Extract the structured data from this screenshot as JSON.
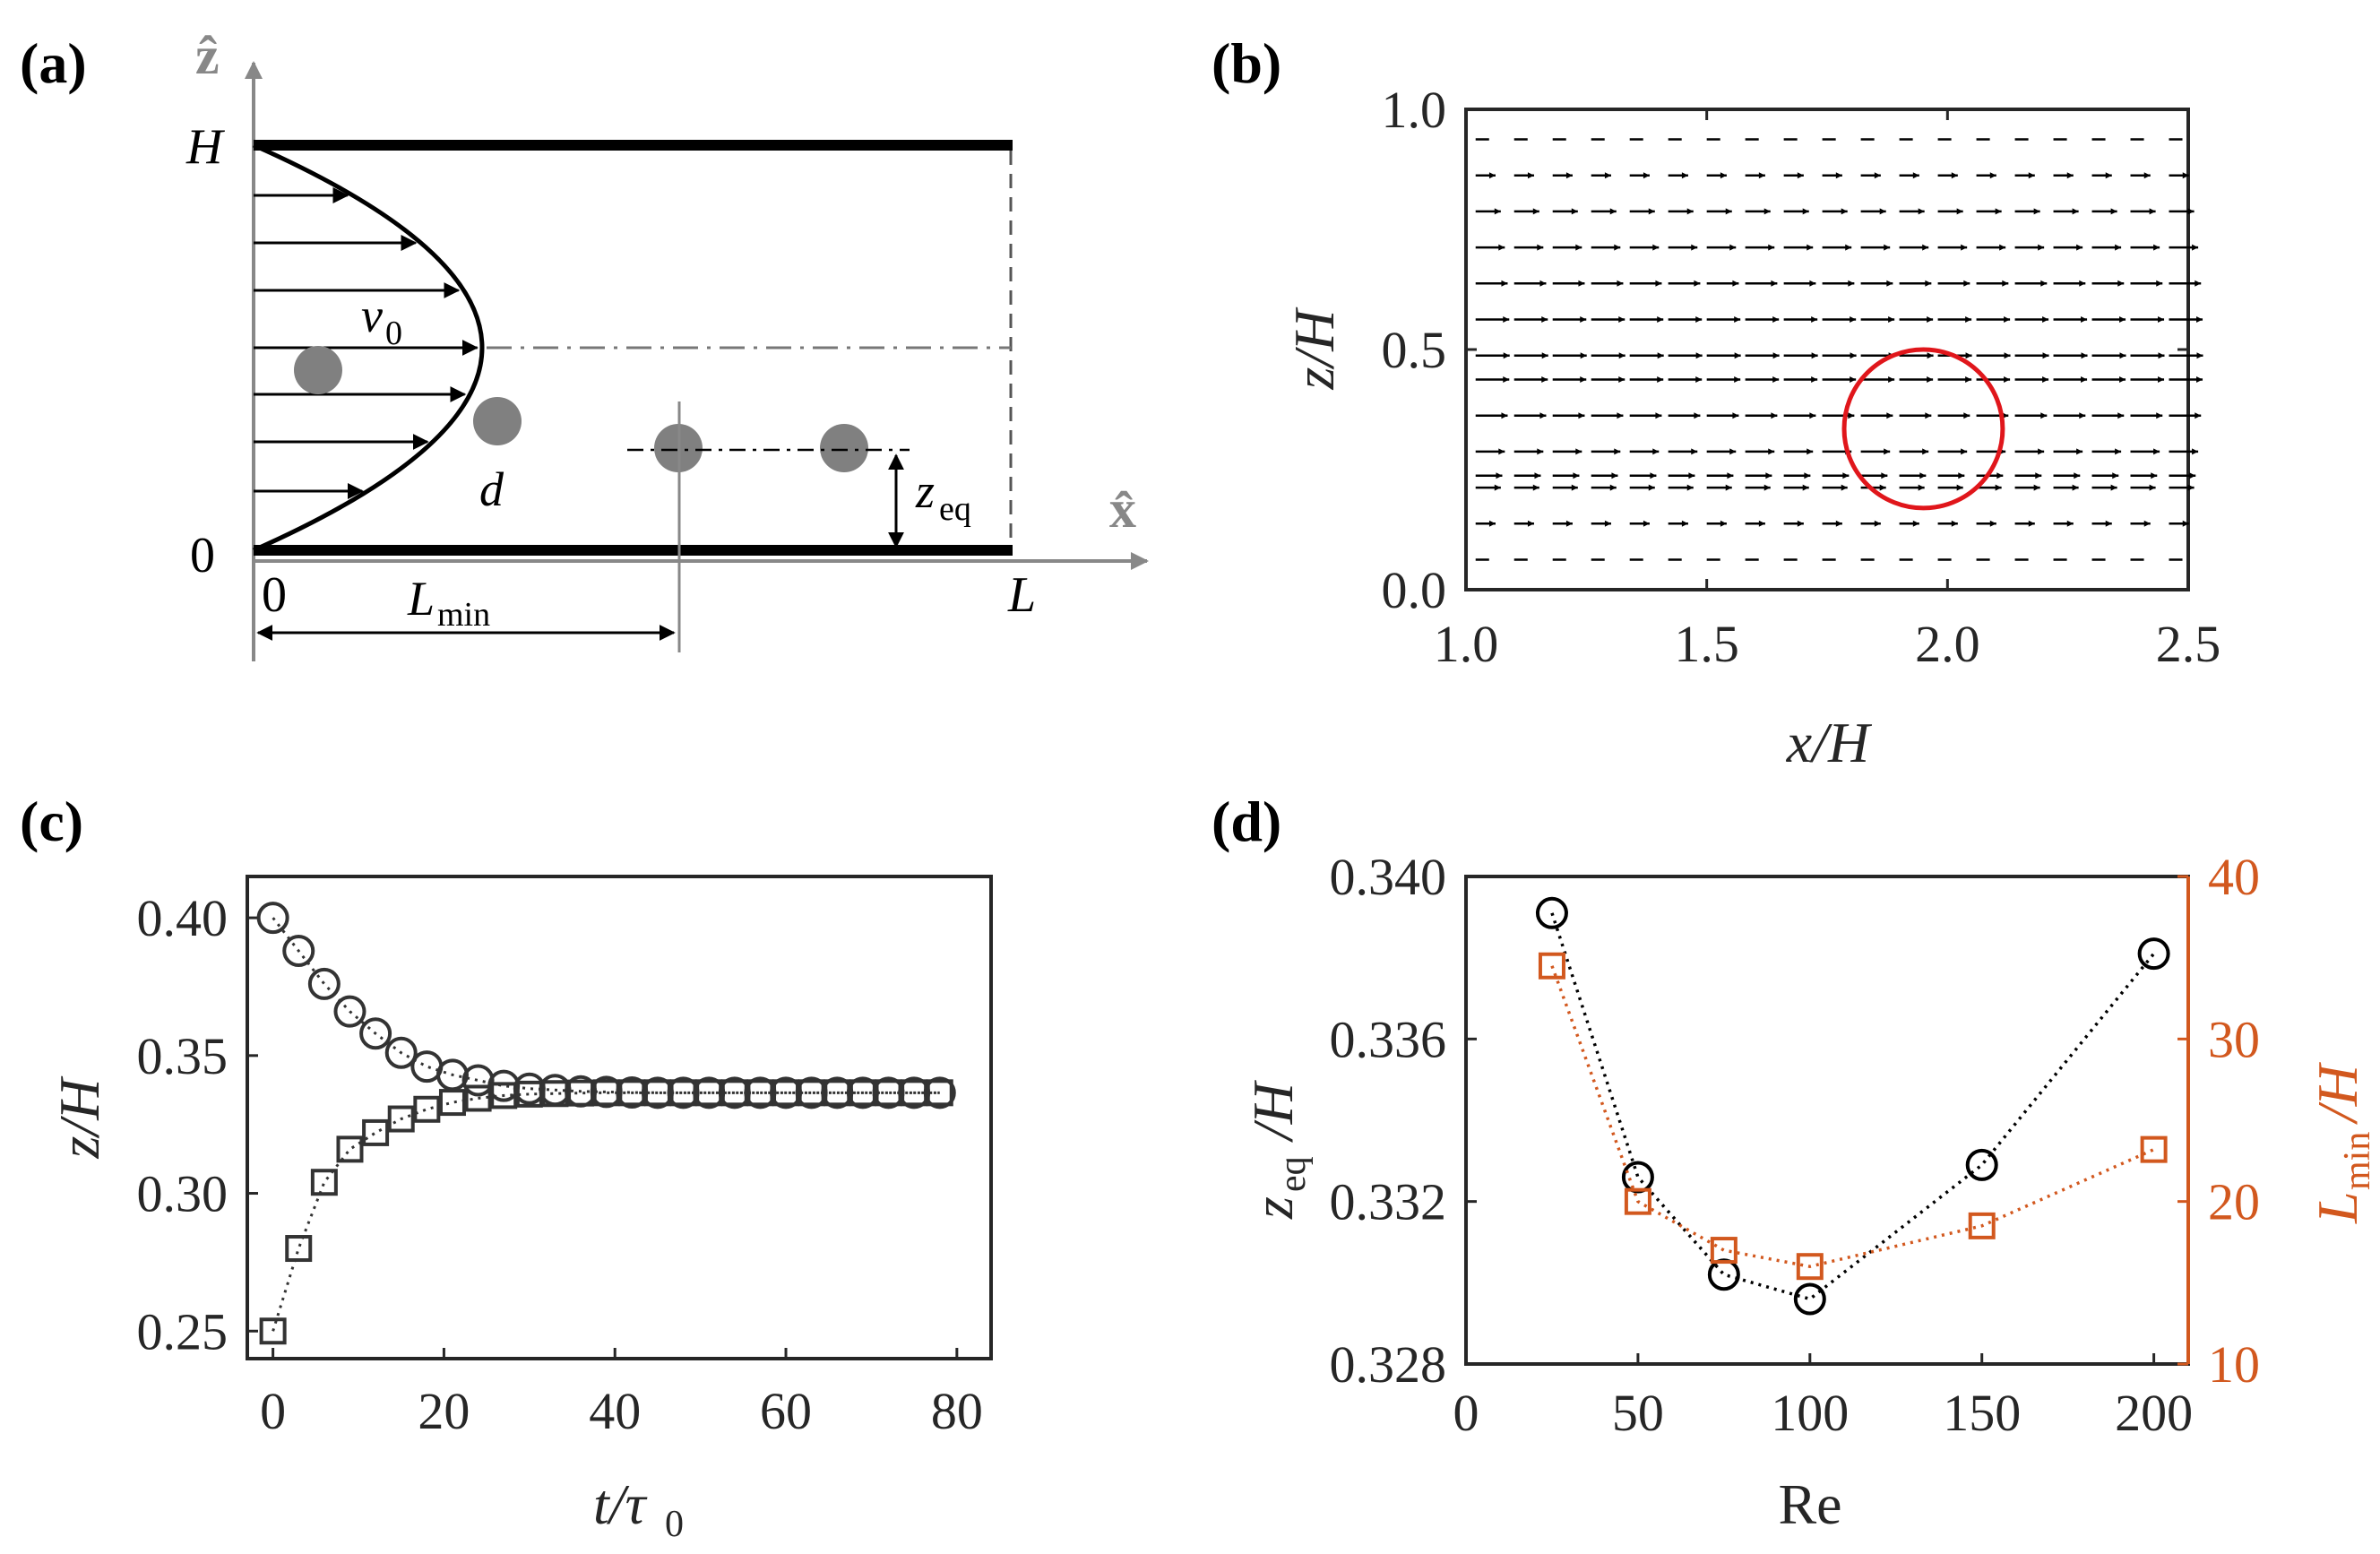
{
  "panels": {
    "a": {
      "label": "(a)",
      "axis_z": "ẑ",
      "axis_x": "x̂",
      "label_H": "H",
      "label_zero_left": "0",
      "label_zero_bottom": "0",
      "label_L": "L",
      "label_v0": "v",
      "label_v0_sub": "0",
      "label_d": "d",
      "label_zeq": "z",
      "label_zeq_sub": "eq",
      "label_Lmin": "L",
      "label_Lmin_sub": "min"
    },
    "b": {
      "label": "(b)"
    },
    "c": {
      "label": "(c)"
    },
    "d": {
      "label": "(d)"
    }
  },
  "chart_data": [
    {
      "id": "b",
      "type": "quiver",
      "title": "(b)",
      "xlabel": "x/H",
      "ylabel": "z/H",
      "xlim": [
        1.0,
        2.5
      ],
      "ylim": [
        0.0,
        1.0
      ],
      "xticks": [
        "1.0",
        "1.5",
        "2.0",
        "2.5"
      ],
      "yticks": [
        "0.0",
        "0.5",
        "1.0"
      ],
      "rows_z": [
        0.0625,
        0.1375,
        0.2125,
        0.2375,
        0.2875,
        0.3625,
        0.4375,
        0.4875,
        0.5625,
        0.6375,
        0.7125,
        0.7875,
        0.8625,
        0.9375
      ],
      "columns_x": [
        1.02,
        1.1,
        1.18,
        1.26,
        1.34,
        1.42,
        1.5,
        1.58,
        1.66,
        1.74,
        1.82,
        1.9,
        1.98,
        2.06,
        2.14,
        2.22,
        2.3,
        2.38,
        2.46
      ],
      "particle": {
        "x": 1.95,
        "z": 0.335,
        "radius": 0.165,
        "color": "#e0161b"
      }
    },
    {
      "id": "c",
      "type": "scatter",
      "title": "(c)",
      "xlabel": "t/τ",
      "xlabel_sub": "0",
      "ylabel": "z/H",
      "xlim": [
        -3,
        84
      ],
      "ylim": [
        0.24,
        0.415
      ],
      "xticks": [
        "0",
        "20",
        "40",
        "60",
        "80"
      ],
      "yticks": [
        "0.25",
        "0.30",
        "0.35",
        "0.40"
      ],
      "series": [
        {
          "name": "circles",
          "marker": "circle",
          "color": "#333333",
          "x": [
            0,
            3,
            6,
            9,
            12,
            15,
            18,
            21,
            24,
            27,
            30,
            33,
            36,
            39,
            42,
            45,
            48,
            51,
            54,
            57,
            60,
            63,
            66,
            69,
            72,
            75,
            78
          ],
          "y": [
            0.4,
            0.388,
            0.376,
            0.366,
            0.358,
            0.351,
            0.346,
            0.343,
            0.341,
            0.339,
            0.338,
            0.3375,
            0.337,
            0.3368,
            0.3366,
            0.3365,
            0.3365,
            0.3365,
            0.3365,
            0.3365,
            0.3365,
            0.3365,
            0.3365,
            0.3365,
            0.3365,
            0.3365,
            0.3365
          ]
        },
        {
          "name": "squares",
          "marker": "square",
          "color": "#333333",
          "x": [
            0,
            3,
            6,
            9,
            12,
            15,
            18,
            21,
            24,
            27,
            30,
            33,
            36,
            39,
            42,
            45,
            48,
            51,
            54,
            57,
            60,
            63,
            66,
            69,
            72,
            75,
            78
          ],
          "y": [
            0.25,
            0.28,
            0.304,
            0.316,
            0.322,
            0.327,
            0.3305,
            0.333,
            0.3345,
            0.3355,
            0.336,
            0.3362,
            0.3364,
            0.3365,
            0.3365,
            0.3365,
            0.3365,
            0.3365,
            0.3365,
            0.3365,
            0.3365,
            0.3365,
            0.3365,
            0.3365,
            0.3365,
            0.3365,
            0.3365
          ]
        }
      ]
    },
    {
      "id": "d",
      "type": "line",
      "title": "(d)",
      "xlabel": "Re",
      "ylabel_left": "z",
      "ylabel_left_sub": "eq",
      "ylabel_left_tail": "/H",
      "ylabel_right": "L",
      "ylabel_right_sub": "min",
      "ylabel_right_tail": "/H",
      "xlim": [
        0,
        210
      ],
      "ylim_left": [
        0.328,
        0.34
      ],
      "ylim_right": [
        10,
        40
      ],
      "xticks": [
        "0",
        "50",
        "100",
        "150",
        "200"
      ],
      "yticks_left": [
        "0.328",
        "0.332",
        "0.336",
        "0.340"
      ],
      "yticks_right": [
        "10",
        "20",
        "30",
        "40"
      ],
      "series": [
        {
          "name": "z_eq/H",
          "axis": "left",
          "marker": "circle",
          "color": "#000000",
          "x": [
            25,
            50,
            75,
            100,
            150,
            200
          ],
          "y": [
            0.3391,
            0.3326,
            0.3302,
            0.3296,
            0.3329,
            0.3381
          ]
        },
        {
          "name": "L_min/H",
          "axis": "right",
          "marker": "square",
          "color": "#d2581e",
          "x": [
            25,
            50,
            75,
            100,
            150,
            200
          ],
          "y": [
            34.5,
            20.0,
            17.0,
            16.0,
            18.5,
            23.2
          ]
        }
      ]
    }
  ]
}
